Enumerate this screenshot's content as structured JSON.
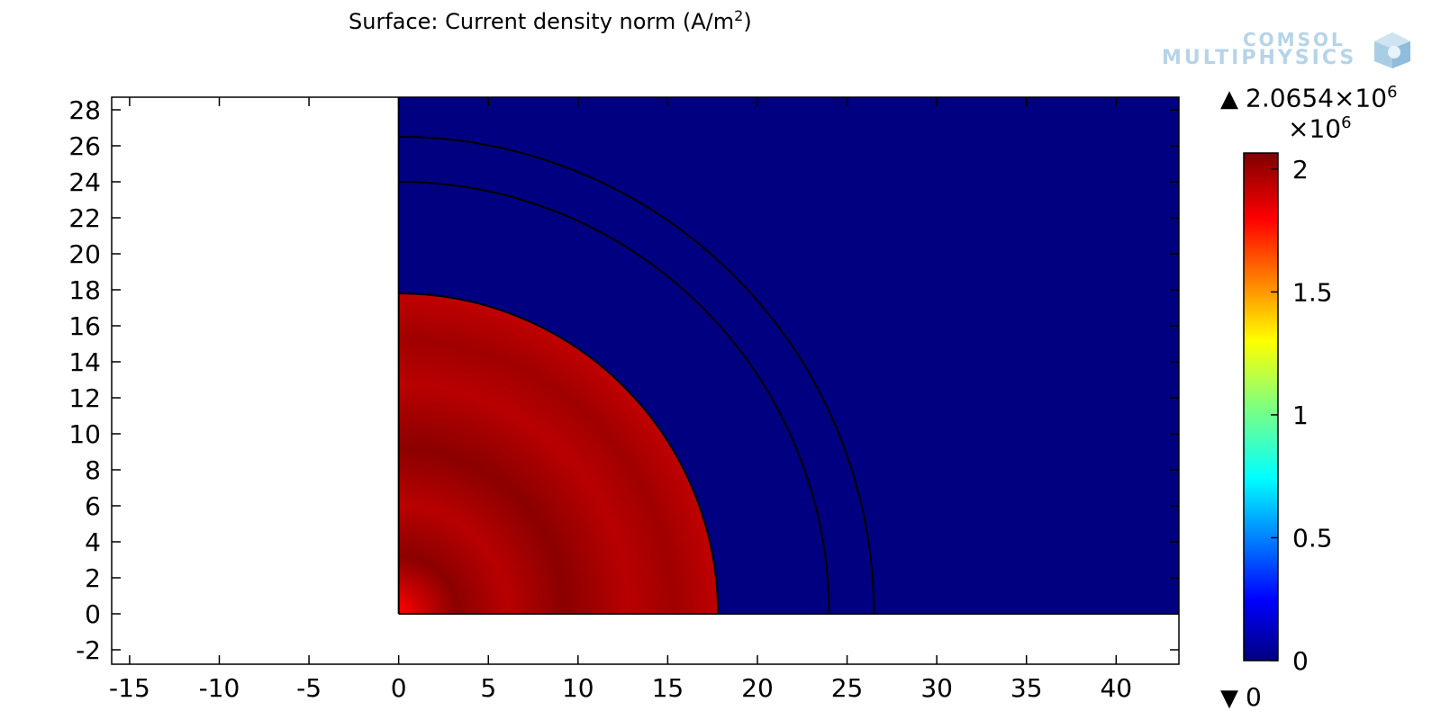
{
  "title": {
    "prefix": "Surface: Current density norm (A/m",
    "exponent": "2",
    "suffix": ")"
  },
  "logo": {
    "line1": "COMSOL",
    "line2": "MULTIPHYSICS",
    "icon": "comsol-cube-icon"
  },
  "colorbar": {
    "max_label_base": "2.0654×10",
    "max_label_exp": "6",
    "multiplier_base": "×10",
    "multiplier_exp": "6",
    "min_label": "0",
    "up_arrow": "▲",
    "down_arrow": "▼",
    "ticks": [
      {
        "value": 0,
        "label": "0"
      },
      {
        "value": 0.5,
        "label": "0.5"
      },
      {
        "value": 1,
        "label": "1"
      },
      {
        "value": 1.5,
        "label": "1.5"
      },
      {
        "value": 2,
        "label": "2"
      }
    ],
    "range": [
      0,
      2.0654
    ],
    "colormap": "rainbow"
  },
  "chart_data": {
    "type": "heatmap",
    "xlim": [
      -16,
      43.5
    ],
    "ylim": [
      -2.8,
      28.7
    ],
    "x_ticks": [
      -15,
      -10,
      -5,
      0,
      5,
      10,
      15,
      20,
      25,
      30,
      35,
      40
    ],
    "y_ticks": [
      -2,
      0,
      2,
      4,
      6,
      8,
      10,
      12,
      14,
      16,
      18,
      20,
      22,
      24,
      26,
      28
    ],
    "domain_x": [
      0,
      43.5
    ],
    "domain_y": [
      0,
      28.7
    ],
    "background_color": "#000080",
    "conductor_radius": 17.8,
    "conductor_value_range": [
      1.75,
      2.0654
    ],
    "boundary_radii": [
      17.8,
      24,
      26.5
    ],
    "colors": {
      "low": "#000080",
      "conductor_dark": "#8b0000",
      "conductor_mid": "#b40000",
      "conductor_peak": "#ff0000"
    }
  }
}
